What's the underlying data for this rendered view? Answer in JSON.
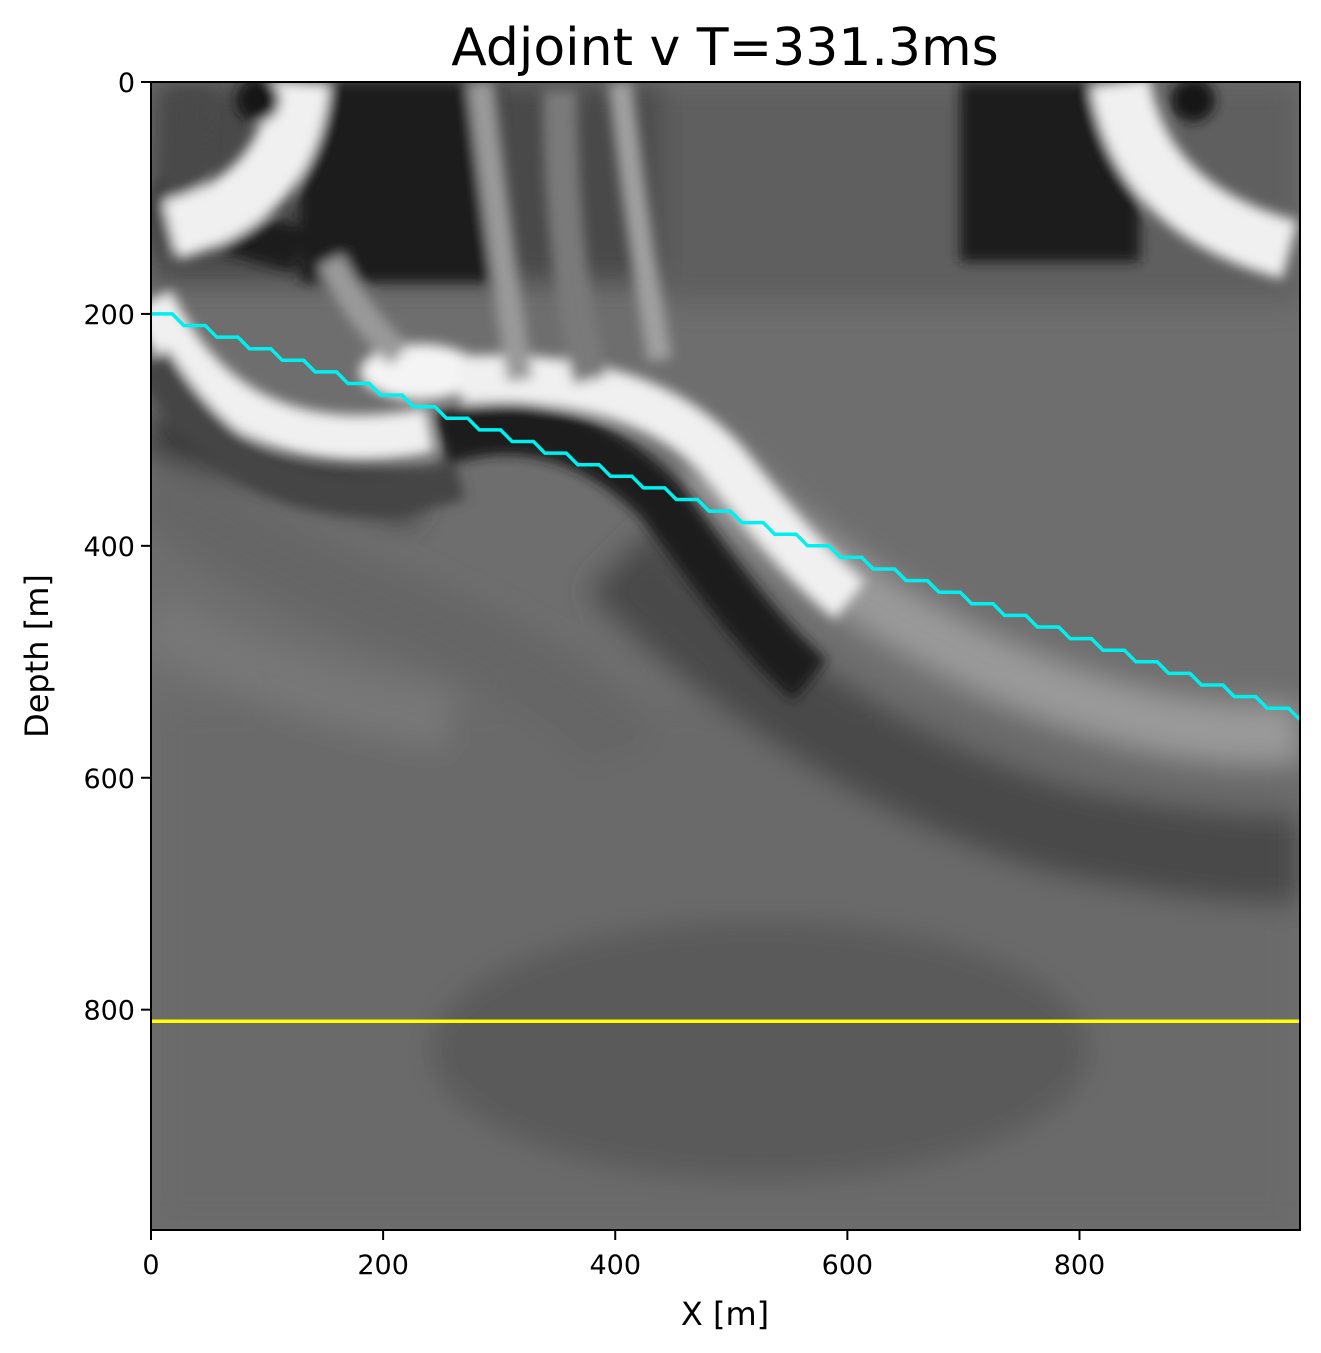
{
  "chart_data": {
    "type": "heatmap",
    "title": "Adjoint v T=331.3ms",
    "xlabel": "X [m]",
    "ylabel": "Depth [m]",
    "xlim": [
      0,
      990
    ],
    "ylim": [
      990,
      0
    ],
    "y_inverted": true,
    "colormap": "gray",
    "xticks": [
      0,
      200,
      400,
      600,
      800
    ],
    "yticks": [
      0,
      200,
      400,
      600,
      800
    ],
    "xtick_labels": [
      "0",
      "200",
      "400",
      "600",
      "800"
    ],
    "ytick_labels": [
      "0",
      "200",
      "400",
      "600",
      "800"
    ],
    "grid": false,
    "overlays": [
      {
        "kind": "interface",
        "color": "#00f0f0",
        "start": [
          0,
          200
        ],
        "end": [
          990,
          550
        ],
        "step_x": 20,
        "step_depth": 10
      },
      {
        "kind": "horizontal_line",
        "color": "#ffff00",
        "depth": 810
      }
    ]
  }
}
